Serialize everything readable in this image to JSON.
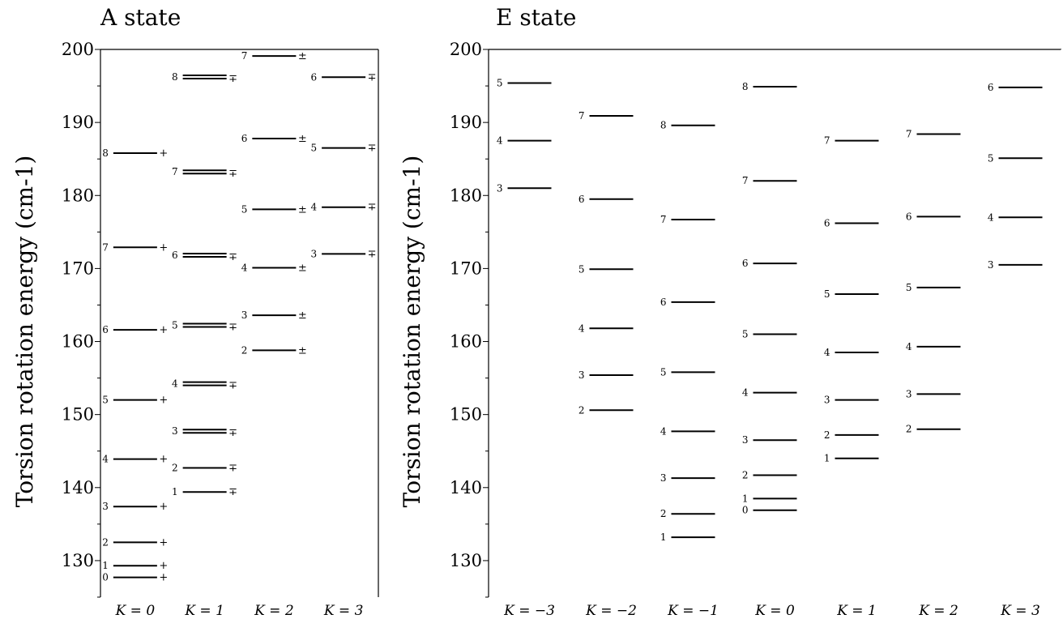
{
  "chart_data": [
    {
      "type": "energy-level",
      "title": "A state",
      "ylabel": "Torsion rotation energy (cm-1)",
      "ylim": [
        125,
        200
      ],
      "yticks": [
        130,
        140,
        150,
        160,
        170,
        180,
        190,
        200
      ],
      "categories": [
        "K = 0",
        "K = 1",
        "K = 2",
        "K = 3"
      ],
      "levels": [
        [
          {
            "J": "0",
            "E": 127.7,
            "p": "+"
          },
          {
            "J": "1",
            "E": 129.3,
            "p": "+"
          },
          {
            "J": "2",
            "E": 132.5,
            "p": "+"
          },
          {
            "J": "3",
            "E": 137.4,
            "p": "+"
          },
          {
            "J": "4",
            "E": 143.9,
            "p": "+"
          },
          {
            "J": "5",
            "E": 152.0,
            "p": "+"
          },
          {
            "J": "6",
            "E": 161.6,
            "p": "+"
          },
          {
            "J": "7",
            "E": 172.9,
            "p": "+"
          },
          {
            "J": "8",
            "E": 185.8,
            "p": "+"
          }
        ],
        [
          {
            "J": "1",
            "E": 139.4,
            "p": "∓",
            "d": 0
          },
          {
            "J": "2",
            "E": 142.7,
            "p": "∓",
            "d": 0
          },
          {
            "J": "3",
            "E": 147.5,
            "p": "∓",
            "d": 1
          },
          {
            "J": "4",
            "E": 154.0,
            "p": "∓",
            "d": 1
          },
          {
            "J": "5",
            "E": 162.0,
            "p": "∓",
            "d": 1
          },
          {
            "J": "6",
            "E": 171.6,
            "p": "∓",
            "d": 1
          },
          {
            "J": "7",
            "E": 183.0,
            "p": "∓",
            "d": 1
          },
          {
            "J": "8",
            "E": 196.0,
            "p": "∓",
            "d": 1
          }
        ],
        [
          {
            "J": "2",
            "E": 158.8,
            "p": "±"
          },
          {
            "J": "3",
            "E": 163.6,
            "p": "±"
          },
          {
            "J": "4",
            "E": 170.1,
            "p": "±"
          },
          {
            "J": "5",
            "E": 178.1,
            "p": "±"
          },
          {
            "J": "6",
            "E": 187.8,
            "p": "±"
          },
          {
            "J": "7",
            "E": 199.1,
            "p": "±"
          }
        ],
        [
          {
            "J": "3",
            "E": 172.0,
            "p": "∓"
          },
          {
            "J": "4",
            "E": 178.4,
            "p": "∓"
          },
          {
            "J": "5",
            "E": 186.5,
            "p": "∓"
          },
          {
            "J": "6",
            "E": 196.2,
            "p": "∓"
          }
        ]
      ]
    },
    {
      "type": "energy-level",
      "title": "E state",
      "ylabel": "Torsion rotation energy (cm-1)",
      "ylim": [
        125,
        200
      ],
      "yticks": [
        130,
        140,
        150,
        160,
        170,
        180,
        190,
        200
      ],
      "categories": [
        "K = −3",
        "K = −2",
        "K = −1",
        "K = 0",
        "K = 1",
        "K = 2",
        "K = 3"
      ],
      "levels": [
        [
          {
            "J": "3",
            "E": 181.0
          },
          {
            "J": "4",
            "E": 187.5
          },
          {
            "J": "5",
            "E": 195.4
          }
        ],
        [
          {
            "J": "2",
            "E": 150.6
          },
          {
            "J": "3",
            "E": 155.4
          },
          {
            "J": "4",
            "E": 161.8
          },
          {
            "J": "5",
            "E": 169.9
          },
          {
            "J": "6",
            "E": 179.5
          },
          {
            "J": "7",
            "E": 190.9
          }
        ],
        [
          {
            "J": "1",
            "E": 133.2
          },
          {
            "J": "2",
            "E": 136.4
          },
          {
            "J": "3",
            "E": 141.3
          },
          {
            "J": "4",
            "E": 147.7
          },
          {
            "J": "5",
            "E": 155.8
          },
          {
            "J": "6",
            "E": 165.4
          },
          {
            "J": "7",
            "E": 176.7
          },
          {
            "J": "8",
            "E": 189.6
          }
        ],
        [
          {
            "J": "0",
            "E": 136.9
          },
          {
            "J": "1",
            "E": 138.5
          },
          {
            "J": "2",
            "E": 141.7
          },
          {
            "J": "3",
            "E": 146.5
          },
          {
            "J": "4",
            "E": 153.0
          },
          {
            "J": "5",
            "E": 161.0
          },
          {
            "J": "6",
            "E": 170.7
          },
          {
            "J": "7",
            "E": 182.0
          },
          {
            "J": "8",
            "E": 194.9
          }
        ],
        [
          {
            "J": "1",
            "E": 144.0
          },
          {
            "J": "2",
            "E": 147.2
          },
          {
            "J": "3",
            "E": 152.0
          },
          {
            "J": "4",
            "E": 158.5
          },
          {
            "J": "5",
            "E": 166.5
          },
          {
            "J": "6",
            "E": 176.2
          },
          {
            "J": "7",
            "E": 187.5
          }
        ],
        [
          {
            "J": "2",
            "E": 148.0
          },
          {
            "J": "3",
            "E": 152.8
          },
          {
            "J": "4",
            "E": 159.3
          },
          {
            "J": "5",
            "E": 167.4
          },
          {
            "J": "6",
            "E": 177.1
          },
          {
            "J": "7",
            "E": 188.4
          }
        ],
        [
          {
            "J": "3",
            "E": 170.5
          },
          {
            "J": "4",
            "E": 177.0
          },
          {
            "J": "5",
            "E": 185.1
          },
          {
            "J": "6",
            "E": 194.8
          }
        ]
      ]
    }
  ]
}
